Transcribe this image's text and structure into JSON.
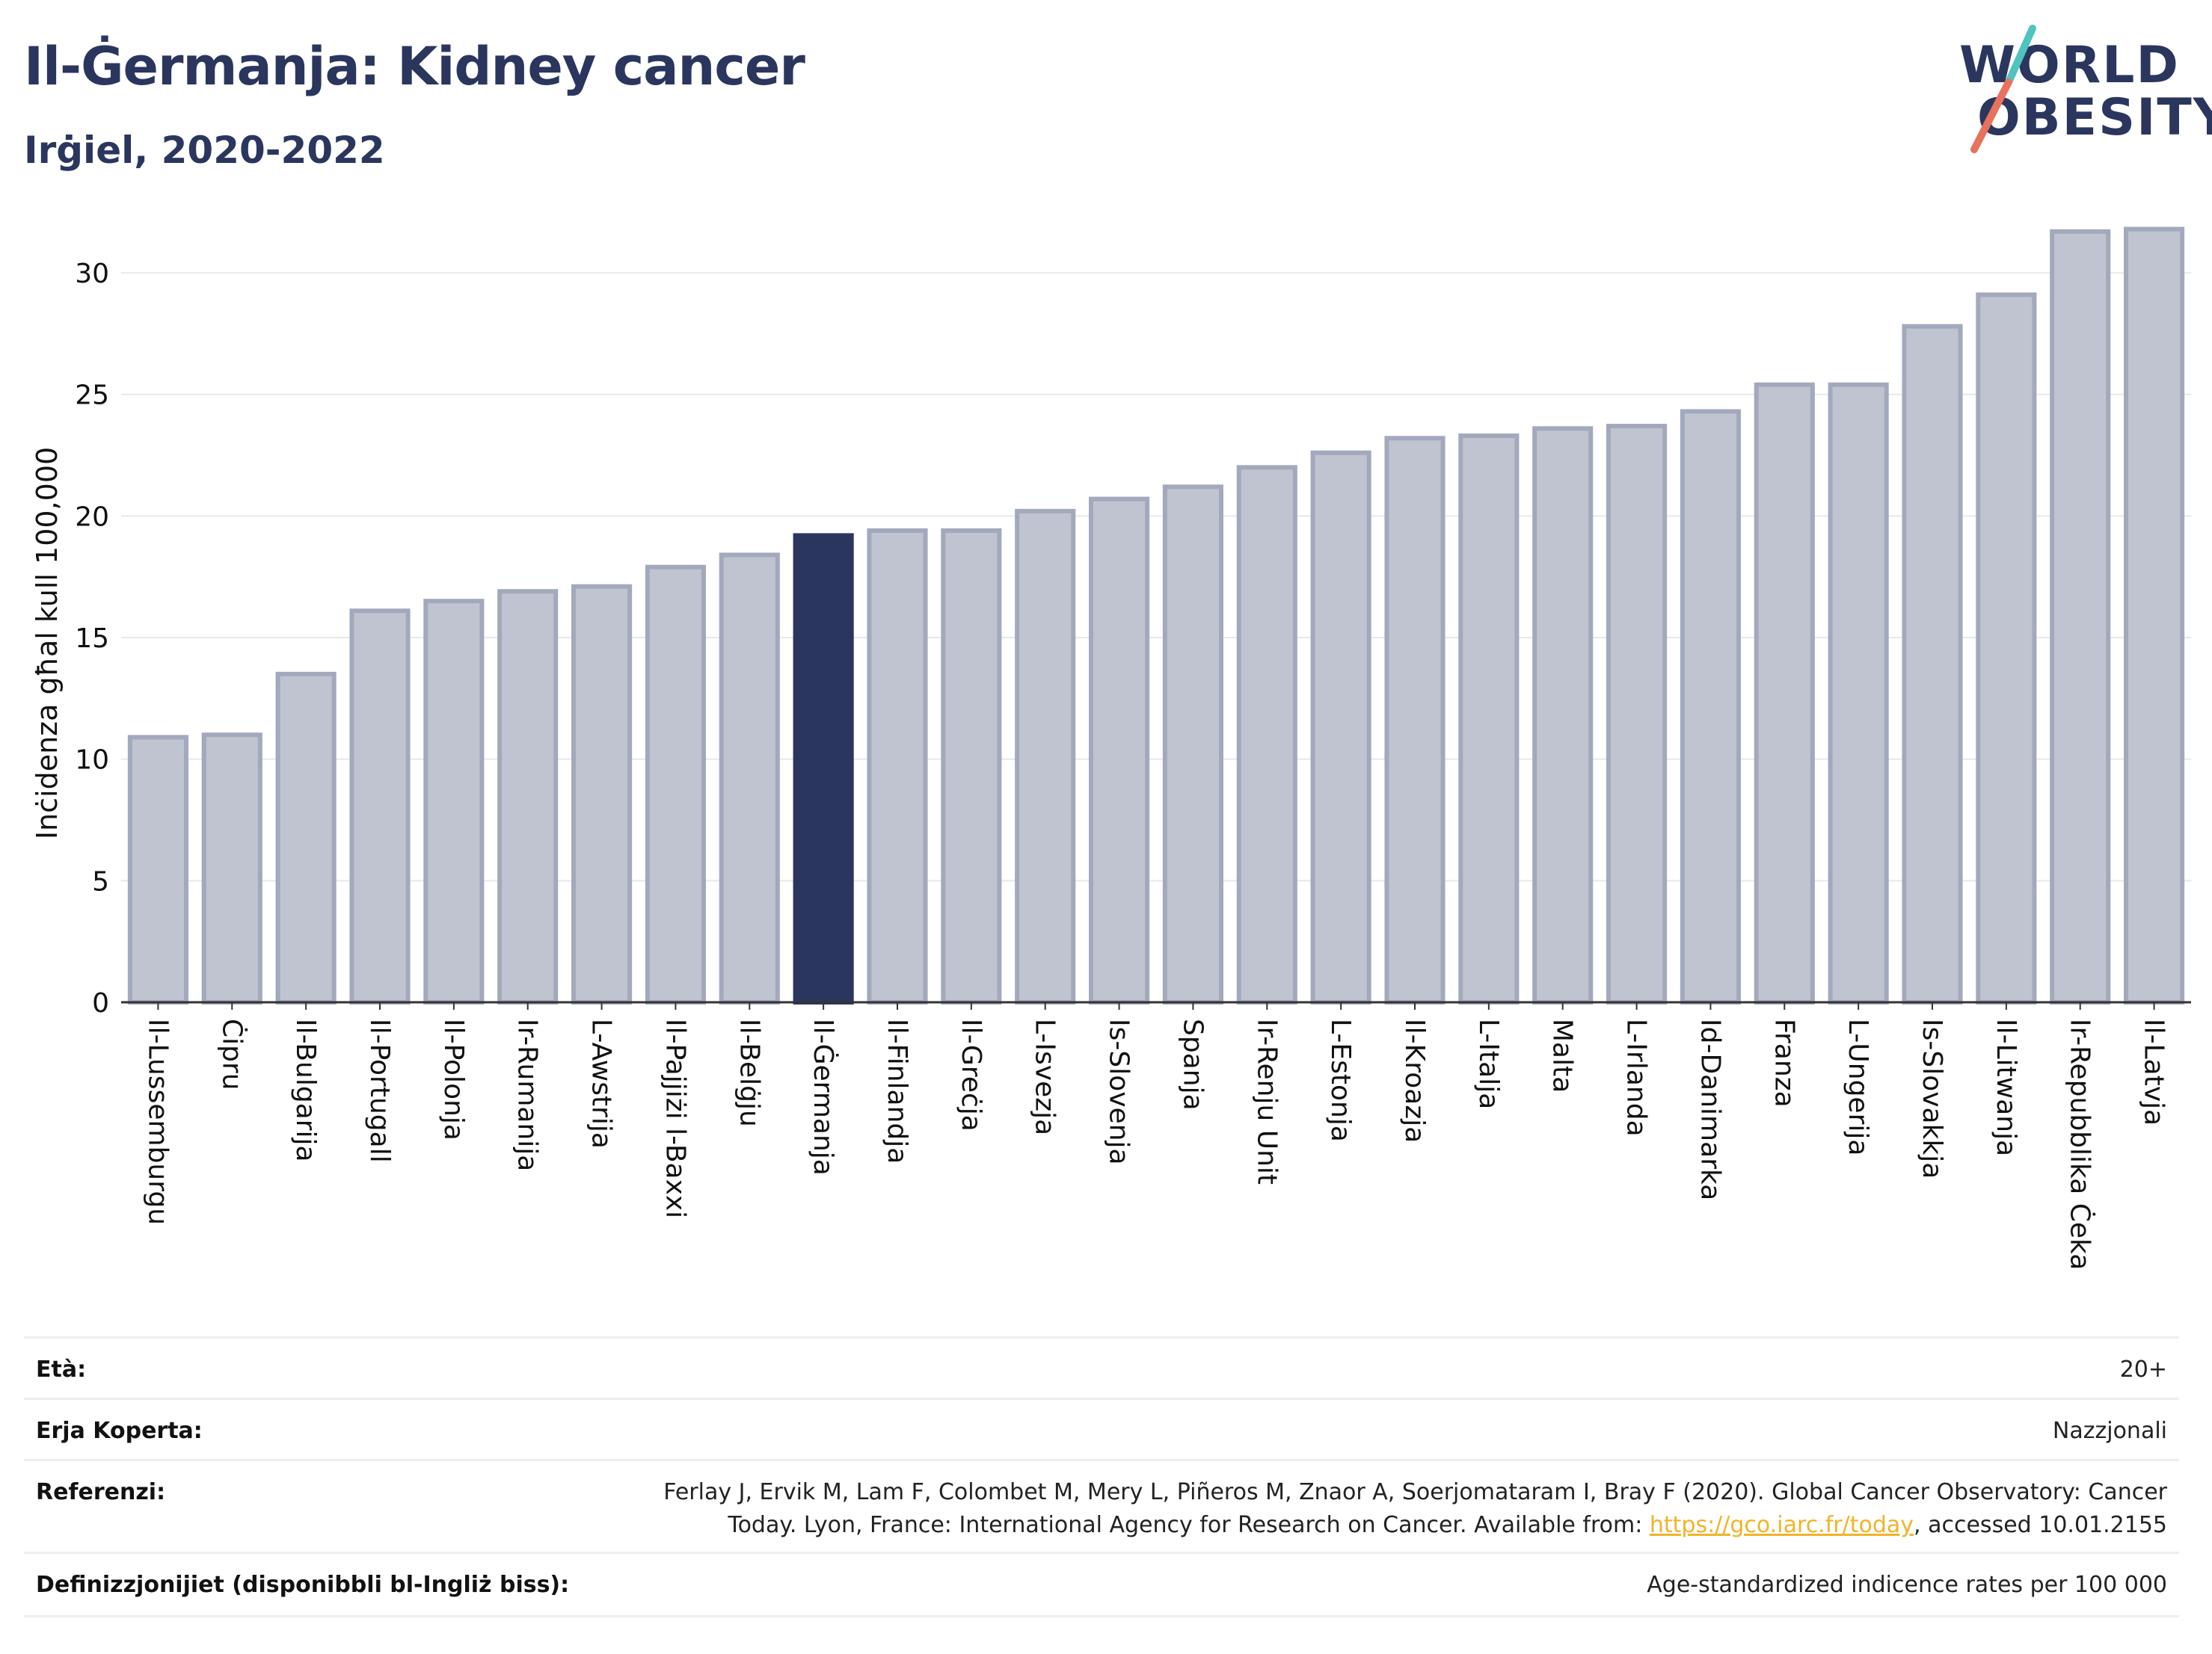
{
  "header": {
    "title": "Il-Ġermanja: Kidney cancer",
    "subtitle": "Irġiel, 2020-2022"
  },
  "logo": {
    "line1": "WORLD",
    "line2": "OBESITY",
    "accent_colors": [
      "#4fc3c0",
      "#e8725c"
    ]
  },
  "colors": {
    "bar": "#c0c4d0",
    "bar_edge": "#a3a9bd",
    "highlight": "#2b365f",
    "text_dark": "#2b365f"
  },
  "chart_data": {
    "type": "bar",
    "ylabel": "Inċidenza għal kull 100,000",
    "ylim": [
      0,
      32
    ],
    "yticks": [
      0,
      5,
      10,
      15,
      20,
      25,
      30
    ],
    "grid": true,
    "highlight": "Il-Ġermanja",
    "categories": [
      "Il-Lussemburgu",
      "Ċipru",
      "Il-Bulgarija",
      "Il-Portugall",
      "Il-Polonja",
      "Ir-Rumanija",
      "L-Awstrija",
      "Il-Pajjiżi l-Baxxi",
      "Il-Belġju",
      "Il-Ġermanja",
      "Il-Finlandja",
      "Il-Greċja",
      "L-Isvezja",
      "Is-Slovenja",
      "Spanja",
      "Ir-Renju Unit",
      "L-Estonja",
      "Il-Kroazja",
      "L-Italja",
      "Malta",
      "L-Irlanda",
      "Id-Danimarka",
      "Franza",
      "L-Ungerija",
      "Is-Slovakkja",
      "Il-Litwanja",
      "Ir-Repubblika Ċeka",
      "Il-Latvja"
    ],
    "values": [
      10.9,
      11.0,
      13.5,
      16.1,
      16.5,
      16.9,
      17.1,
      17.9,
      18.4,
      19.2,
      19.4,
      19.4,
      20.2,
      20.7,
      21.2,
      22.0,
      22.6,
      23.2,
      23.3,
      23.6,
      23.7,
      24.3,
      25.4,
      25.4,
      27.8,
      29.1,
      31.7,
      31.8
    ]
  },
  "meta": {
    "age_label": "Età:",
    "age_value": "20+",
    "area_label": "Erja Koperta:",
    "area_value": "Nazzjonali",
    "ref_label": "Referenzi:",
    "ref_line1": "Ferlay J, Ervik M, Lam F, Colombet M, Mery L, Piñeros M, Znaor A, Soerjomataram I, Bray F (2020). Global Cancer Observatory: Cancer",
    "ref_line2_pre": "Today. Lyon, France: International Agency for Research on Cancer. Available from: ",
    "ref_link": "https://gco.iarc.fr/today",
    "ref_line2_post": ", accessed 10.01.2155",
    "def_label": "Definizzjonijiet (disponibbli bl-Ingliż biss):",
    "def_value": "Age-standardized indicence rates per 100 000"
  }
}
